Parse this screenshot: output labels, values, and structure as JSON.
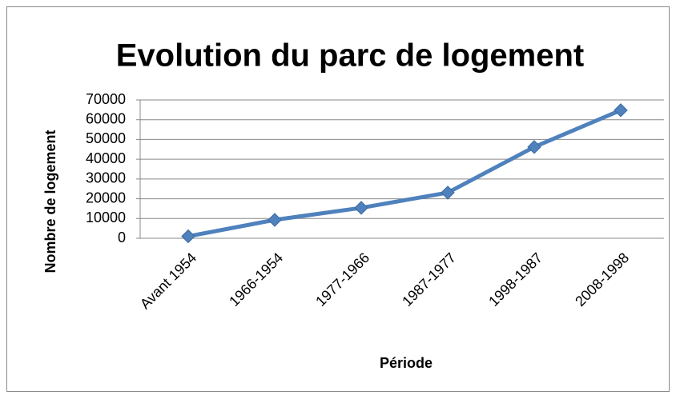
{
  "chart_data": {
    "type": "line",
    "title": "Evolution du parc de logement",
    "x_label": "Période",
    "y_label": "Nombre de logement",
    "categories": [
      "Avant 1954",
      "1966-1954",
      "1977-1966",
      "1987-1977",
      "1998-1987",
      "2008-1998"
    ],
    "series": [
      {
        "name": "Nombre de logement",
        "color": "#4f81bd",
        "values": [
          1000,
          9300,
          15400,
          23100,
          46200,
          64800
        ]
      }
    ],
    "ylim": [
      0,
      70000
    ],
    "yticks": [
      0,
      10000,
      20000,
      30000,
      40000,
      50000,
      60000,
      70000
    ],
    "grid": true
  }
}
